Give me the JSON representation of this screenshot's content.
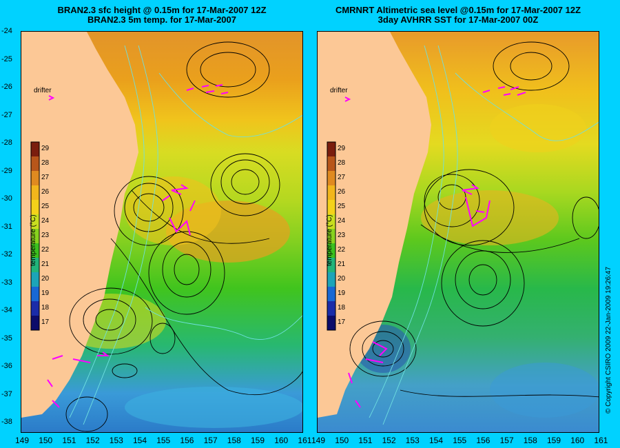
{
  "left": {
    "title_line1": "BRAN2.3 sfc height @ 0.15m for 17-Mar-2007 12Z",
    "title_line2": "BRAN2.3 5m temp. for 17-Mar-2007",
    "drifter_label": "drifter",
    "colorbar_label": "temperature (°C)"
  },
  "right": {
    "title_line1": "CMRNRT Altimetric sea level  @0.15m  for 17-Mar-2007 12Z",
    "title_line2": "3day AVHRR SST for 17-Mar-2007 00Z",
    "drifter_label": "drifter",
    "colorbar_label": "temperature (°C)"
  },
  "lat_ticks": [
    "-24",
    "-25",
    "-26",
    "-27",
    "-28",
    "-29",
    "-30",
    "-31",
    "-32",
    "-33",
    "-34",
    "-35",
    "-36",
    "-37",
    "-38"
  ],
  "lon_ticks_left": [
    "149",
    "150",
    "151",
    "152",
    "153",
    "154",
    "155",
    "156",
    "157",
    "158",
    "159",
    "160",
    "161"
  ],
  "lon_ticks_right": [
    "149",
    "150",
    "151",
    "152",
    "153",
    "154",
    "155",
    "156",
    "157",
    "158",
    "159",
    "160",
    "161"
  ],
  "colorbar_ticks": [
    "29",
    "28",
    "27",
    "26",
    "25",
    "24",
    "23",
    "22",
    "21",
    "20",
    "19",
    "18",
    "17"
  ],
  "colorbar_colors": [
    "#7a1e0e",
    "#b8561a",
    "#e08a20",
    "#f2b61c",
    "#f4d21a",
    "#c8de20",
    "#88d21e",
    "#3cc01e",
    "#22b47a",
    "#1ca4b8",
    "#1868d4",
    "#1a2ca8",
    "#0c0c6a"
  ],
  "copyright": "© Copyright CSIRO 2009   22-Jan-2009 19:26:47"
}
